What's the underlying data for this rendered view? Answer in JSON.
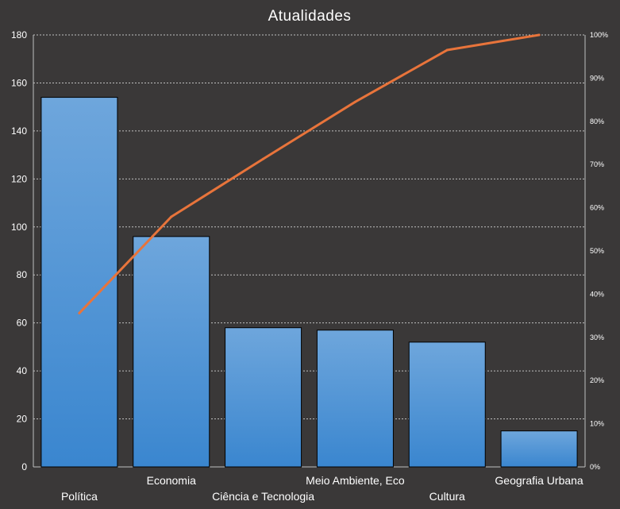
{
  "chart_data": {
    "type": "bar",
    "title": "Atualidades",
    "categories": [
      "Política",
      "Economia",
      "Ciência e Tecnologia",
      "Meio Ambiente, Eco",
      "Cultura",
      "Geografia Urbana"
    ],
    "values": [
      154,
      96,
      58,
      57,
      52,
      15
    ],
    "ylim": [
      0,
      180
    ],
    "yticks": [
      0,
      20,
      40,
      60,
      80,
      100,
      120,
      140,
      160,
      180
    ],
    "secondary_axis": {
      "ylim": [
        0,
        100
      ],
      "tick_labels": [
        "0%",
        "10%",
        "20%",
        "30%",
        "40%",
        "50%",
        "60%",
        "70%",
        "80%",
        "90%",
        "100%"
      ]
    },
    "cumulative_line": {
      "type": "line",
      "axis": "secondary",
      "values": [
        35.6,
        57.9,
        71.3,
        84.5,
        96.5,
        100.0
      ]
    },
    "grid": true,
    "legend": "none",
    "colors": {
      "background": "#3a3838",
      "bar_top": "#6ea6dc",
      "bar_bottom": "#3a86cf",
      "line": "#e8743b",
      "grid": "#bfbfbf",
      "text": "#ffffff"
    }
  }
}
